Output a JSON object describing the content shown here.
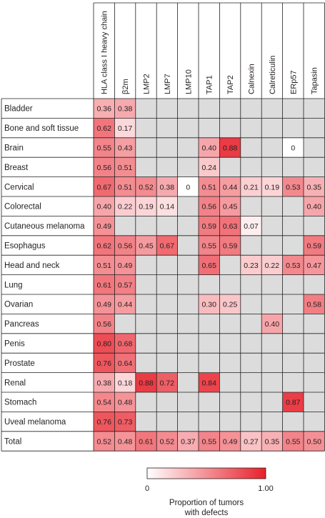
{
  "chart_data": {
    "type": "heatmap",
    "columns": [
      "HLA class I heavy chain",
      "β2m",
      "LMP2",
      "LMP7",
      "LMP10",
      "TAP1",
      "TAP2",
      "Calnexin",
      "Calreticulin",
      "ERp57",
      "Tapasin"
    ],
    "rows": [
      {
        "label": "Bladder",
        "values": [
          0.36,
          0.38,
          null,
          null,
          null,
          null,
          null,
          null,
          null,
          null,
          null
        ]
      },
      {
        "label": "Bone and soft tissue",
        "values": [
          0.62,
          0.17,
          null,
          null,
          null,
          null,
          null,
          null,
          null,
          null,
          null
        ]
      },
      {
        "label": "Brain",
        "values": [
          0.55,
          0.43,
          null,
          null,
          null,
          0.4,
          0.88,
          null,
          null,
          0,
          null
        ]
      },
      {
        "label": "Breast",
        "values": [
          0.56,
          0.51,
          null,
          null,
          null,
          0.24,
          null,
          null,
          null,
          null,
          null
        ]
      },
      {
        "label": "Cervical",
        "values": [
          0.67,
          0.51,
          0.52,
          0.38,
          0,
          0.51,
          0.44,
          0.21,
          0.19,
          0.53,
          0.35
        ]
      },
      {
        "label": "Colorectal",
        "values": [
          0.4,
          0.22,
          0.19,
          0.14,
          null,
          0.56,
          0.45,
          null,
          null,
          null,
          0.4
        ]
      },
      {
        "label": "Cutaneous melanoma",
        "values": [
          0.49,
          null,
          null,
          null,
          null,
          0.59,
          0.63,
          0.07,
          null,
          null,
          null
        ]
      },
      {
        "label": "Esophagus",
        "values": [
          0.62,
          0.56,
          0.45,
          0.67,
          null,
          0.55,
          0.59,
          null,
          null,
          null,
          0.59
        ]
      },
      {
        "label": "Head and neck",
        "values": [
          0.51,
          0.49,
          null,
          null,
          null,
          0.65,
          null,
          0.23,
          0.22,
          0.53,
          0.47
        ]
      },
      {
        "label": "Lung",
        "values": [
          0.61,
          0.57,
          null,
          null,
          null,
          null,
          null,
          null,
          null,
          null,
          null
        ]
      },
      {
        "label": "Ovarian",
        "values": [
          0.49,
          0.44,
          null,
          null,
          null,
          0.3,
          0.25,
          null,
          null,
          null,
          0.58
        ]
      },
      {
        "label": "Pancreas",
        "values": [
          0.56,
          null,
          null,
          null,
          null,
          null,
          null,
          null,
          0.4,
          null,
          null
        ]
      },
      {
        "label": "Penis",
        "values": [
          0.8,
          0.68,
          null,
          null,
          null,
          null,
          null,
          null,
          null,
          null,
          null
        ]
      },
      {
        "label": "Prostate",
        "values": [
          0.76,
          0.64,
          null,
          null,
          null,
          null,
          null,
          null,
          null,
          null,
          null
        ]
      },
      {
        "label": "Renal",
        "values": [
          0.38,
          0.18,
          0.88,
          0.72,
          null,
          0.84,
          null,
          null,
          null,
          null,
          null
        ]
      },
      {
        "label": "Stomach",
        "values": [
          0.54,
          0.48,
          null,
          null,
          null,
          null,
          null,
          null,
          null,
          0.87,
          null
        ]
      },
      {
        "label": "Uveal melanoma",
        "values": [
          0.76,
          0.73,
          null,
          null,
          null,
          null,
          null,
          null,
          null,
          null,
          null
        ]
      },
      {
        "label": "Total",
        "values": [
          0.52,
          0.48,
          0.61,
          0.52,
          0.37,
          0.55,
          0.49,
          0.27,
          0.35,
          0.55,
          0.5
        ]
      }
    ],
    "value_labels": [
      [
        "0.36",
        "0.38",
        "",
        "",
        "",
        "",
        "",
        "",
        "",
        "",
        ""
      ],
      [
        "0.62",
        "0.17",
        "",
        "",
        "",
        "",
        "",
        "",
        "",
        "",
        ""
      ],
      [
        "0.55",
        "0.43",
        "",
        "",
        "",
        "0.40",
        "0.88",
        "",
        "",
        "0",
        ""
      ],
      [
        "0.56",
        "0.51",
        "",
        "",
        "",
        "0.24",
        "",
        "",
        "",
        "",
        ""
      ],
      [
        "0.67",
        "0.51",
        "0.52",
        "0.38",
        "0",
        "0.51",
        "0.44",
        "0.21",
        "0.19",
        "0.53",
        "0.35"
      ],
      [
        "0.40",
        "0.22",
        "0.19",
        "0.14",
        "",
        "0.56",
        "0.45",
        "",
        "",
        "",
        "0.40"
      ],
      [
        "0.49",
        "",
        "",
        "",
        "",
        "0.59",
        "0.63",
        "0.07",
        "",
        "",
        ""
      ],
      [
        "0.62",
        "0.56",
        "0.45",
        "0.67",
        "",
        "0.55",
        "0.59",
        "",
        "",
        "",
        "0.59"
      ],
      [
        "0.51",
        "0.49",
        "",
        "",
        "",
        "0.65",
        "",
        "0.23",
        "0.22",
        "0.53",
        "0.47"
      ],
      [
        "0.61",
        "0.57",
        "",
        "",
        "",
        "",
        "",
        "",
        "",
        "",
        ""
      ],
      [
        "0.49",
        "0.44",
        "",
        "",
        "",
        "0.30",
        "0.25",
        "",
        "",
        "",
        "0.58"
      ],
      [
        "0.56",
        "",
        "",
        "",
        "",
        "",
        "",
        "",
        "0.40",
        "",
        ""
      ],
      [
        "0.80",
        "0.68",
        "",
        "",
        "",
        "",
        "",
        "",
        "",
        "",
        ""
      ],
      [
        "0.76",
        "0.64",
        "",
        "",
        "",
        "",
        "",
        "",
        "",
        "",
        ""
      ],
      [
        "0.38",
        "0.18",
        "0.88",
        "0.72",
        "",
        "0.84",
        "",
        "",
        "",
        "",
        ""
      ],
      [
        "0.54",
        "0.48",
        "",
        "",
        "",
        "",
        "",
        "",
        "",
        "0.87",
        ""
      ],
      [
        "0.76",
        "0.73",
        "",
        "",
        "",
        "",
        "",
        "",
        "",
        "",
        ""
      ],
      [
        "0.52",
        "0.48",
        "0.61",
        "0.52",
        "0.37",
        "0.55",
        "0.49",
        "0.27",
        "0.35",
        "0.55",
        "0.50"
      ]
    ],
    "color_scale": {
      "min": 0,
      "max": 1.0,
      "min_label": "0",
      "max_label": "1.00",
      "low_color": "#ffffff",
      "high_color": "#e8202a",
      "missing_color": "#dcdcdc",
      "title": [
        "Proportion of tumors",
        "with defects"
      ]
    },
    "grid": true
  },
  "colors": {
    "border": "#231f20",
    "text": "#231f20",
    "row_separator": "#231f20"
  }
}
